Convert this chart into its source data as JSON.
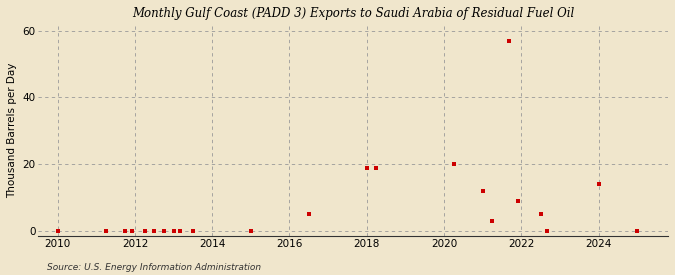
{
  "title": "Monthly Gulf Coast (PADD 3) Exports to Saudi Arabia of Residual Fuel Oil",
  "ylabel": "Thousand Barrels per Day",
  "source": "Source: U.S. Energy Information Administration",
  "background_color": "#f0e6cc",
  "plot_bg_color": "#f0e6cc",
  "marker_color": "#cc0000",
  "marker_size": 12,
  "xlim": [
    2009.5,
    2025.8
  ],
  "ylim": [
    -1.5,
    62
  ],
  "yticks": [
    0,
    20,
    40,
    60
  ],
  "xticks": [
    2010,
    2012,
    2014,
    2016,
    2018,
    2020,
    2022,
    2024
  ],
  "data_points": [
    [
      2010.0,
      0
    ],
    [
      2011.25,
      0
    ],
    [
      2011.75,
      0
    ],
    [
      2011.92,
      0
    ],
    [
      2012.25,
      0
    ],
    [
      2012.5,
      0
    ],
    [
      2012.75,
      0
    ],
    [
      2013.0,
      0
    ],
    [
      2013.17,
      0
    ],
    [
      2013.5,
      0
    ],
    [
      2015.0,
      0
    ],
    [
      2016.5,
      5.0
    ],
    [
      2018.0,
      19.0
    ],
    [
      2018.25,
      19.0
    ],
    [
      2020.25,
      20.0
    ],
    [
      2021.0,
      12.0
    ],
    [
      2021.25,
      3.0
    ],
    [
      2021.67,
      57.0
    ],
    [
      2021.92,
      9.0
    ],
    [
      2022.5,
      5.0
    ],
    [
      2022.67,
      0
    ],
    [
      2024.0,
      14.0
    ],
    [
      2025.0,
      0
    ]
  ]
}
